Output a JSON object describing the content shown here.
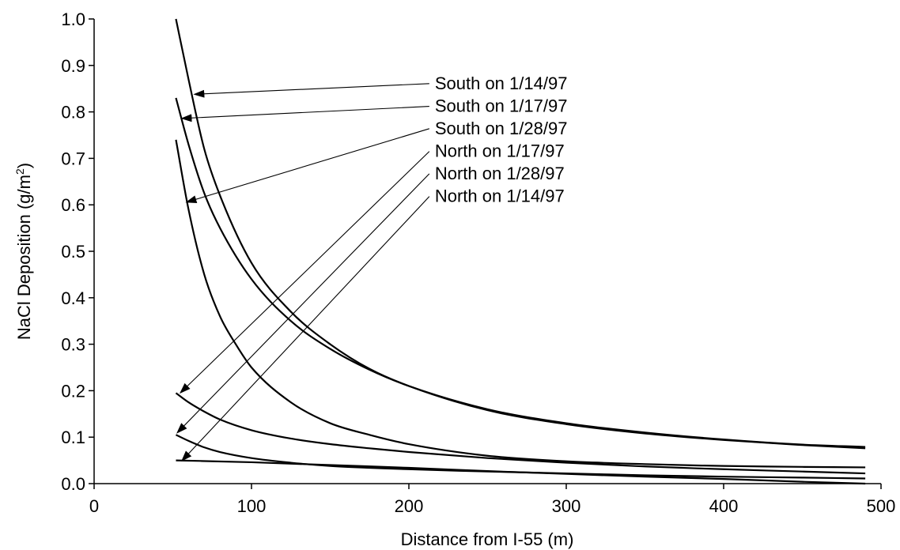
{
  "chart_data": {
    "type": "line",
    "title": "",
    "xlabel": "Distance from I-55 (m)",
    "ylabel": "NaCl Deposition (g/m",
    "ylabel_sup": "2",
    "ylabel_end": ")",
    "xlim": [
      0,
      500
    ],
    "ylim": [
      0.0,
      1.0
    ],
    "x_ticks": [
      "0",
      "100",
      "200",
      "300",
      "400",
      "500"
    ],
    "y_ticks": [
      "0.0",
      "0.1",
      "0.2",
      "0.3",
      "0.4",
      "0.5",
      "0.6",
      "0.7",
      "0.8",
      "0.9",
      "1.0"
    ],
    "grid": false,
    "legend": "none",
    "line_color": "#000000",
    "series": [
      {
        "name": "South on 1/14/97",
        "x": [
          52,
          60,
          70,
          80,
          100,
          125,
          150,
          175,
          200,
          250,
          300,
          350,
          400,
          450,
          490
        ],
        "y": [
          1.0,
          0.87,
          0.72,
          0.62,
          0.475,
          0.37,
          0.3,
          0.247,
          0.21,
          0.158,
          0.128,
          0.108,
          0.094,
          0.083,
          0.076
        ]
      },
      {
        "name": "South on 1/17/97",
        "x": [
          52,
          60,
          70,
          80,
          100,
          125,
          150,
          175,
          200,
          250,
          300,
          350,
          400,
          450,
          490
        ],
        "y": [
          0.83,
          0.73,
          0.625,
          0.55,
          0.44,
          0.35,
          0.29,
          0.245,
          0.21,
          0.16,
          0.13,
          0.11,
          0.095,
          0.084,
          0.079
        ]
      },
      {
        "name": "South on 1/28/97",
        "x": [
          52,
          60,
          70,
          80,
          90,
          100,
          125,
          150,
          175,
          200,
          250,
          300,
          350,
          400,
          450,
          490
        ],
        "y": [
          0.74,
          0.59,
          0.45,
          0.36,
          0.3,
          0.25,
          0.175,
          0.13,
          0.105,
          0.085,
          0.06,
          0.048,
          0.042,
          0.038,
          0.036,
          0.035
        ]
      },
      {
        "name": "North on 1/17/97",
        "x": [
          52,
          60,
          70,
          80,
          100,
          125,
          150,
          175,
          200,
          250,
          300,
          350,
          400,
          450,
          490
        ],
        "y": [
          0.195,
          0.175,
          0.155,
          0.138,
          0.115,
          0.097,
          0.085,
          0.076,
          0.068,
          0.055,
          0.045,
          0.037,
          0.031,
          0.026,
          0.022
        ]
      },
      {
        "name": "North on 1/28/97",
        "x": [
          52,
          60,
          70,
          80,
          100,
          125,
          150,
          175,
          200,
          250,
          300,
          350,
          400,
          450,
          490
        ],
        "y": [
          0.105,
          0.092,
          0.078,
          0.068,
          0.055,
          0.045,
          0.038,
          0.034,
          0.031,
          0.026,
          0.022,
          0.018,
          0.015,
          0.013,
          0.011
        ]
      },
      {
        "name": "North on 1/14/97",
        "x": [
          52,
          100,
          150,
          200,
          250,
          300,
          350,
          400,
          450,
          490
        ],
        "y": [
          0.05,
          0.046,
          0.04,
          0.034,
          0.027,
          0.021,
          0.015,
          0.01,
          0.004,
          0.0
        ]
      }
    ],
    "annotations": [
      {
        "text": "South on 1/14/97",
        "label_x": 215,
        "label_y": 0.849,
        "arrow_to_x": 64,
        "arrow_to_y": 0.838
      },
      {
        "text": "South on 1/17/97",
        "label_x": 215,
        "label_y": 0.8,
        "arrow_to_x": 56,
        "arrow_to_y": 0.786
      },
      {
        "text": "South on 1/28/97",
        "label_x": 215,
        "label_y": 0.752,
        "arrow_to_x": 59,
        "arrow_to_y": 0.606
      },
      {
        "text": "North on 1/17/97",
        "label_x": 215,
        "label_y": 0.703,
        "arrow_to_x": 55,
        "arrow_to_y": 0.196
      },
      {
        "text": "North on 1/28/97",
        "label_x": 215,
        "label_y": 0.655,
        "arrow_to_x": 53,
        "arrow_to_y": 0.11
      },
      {
        "text": "North on 1/14/97",
        "label_x": 215,
        "label_y": 0.606,
        "arrow_to_x": 56,
        "arrow_to_y": 0.05
      }
    ]
  }
}
